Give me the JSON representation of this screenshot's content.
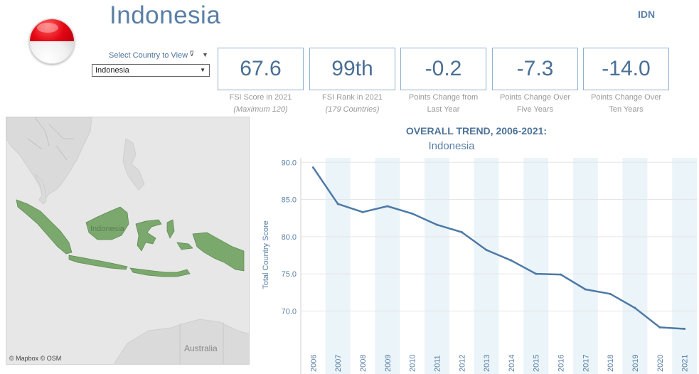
{
  "header": {
    "country_name": "Indonesia",
    "iso_code": "IDN",
    "flag_colors": {
      "top": "#e30613",
      "bottom": "#ffffff"
    }
  },
  "filter": {
    "label": "Select Country to View",
    "selected": "Indonesia"
  },
  "kpis": [
    {
      "value": "67.6",
      "caption": "FSI Score in 2021",
      "sub": "(Maximum 120)"
    },
    {
      "value": "99th",
      "caption": "FSI Rank in 2021",
      "sub": "(179 Countries)"
    },
    {
      "value": "-0.2",
      "caption": "Points Change from",
      "sub": "Last Year"
    },
    {
      "value": "-7.3",
      "caption": "Points Change Over",
      "sub": "Five Years"
    },
    {
      "value": "-14.0",
      "caption": "Points Change Over",
      "sub": "Ten Years"
    }
  ],
  "map": {
    "attribution": "© Mapbox  © OSM",
    "highlight_label": "Indonesia",
    "other_label": "Australia",
    "highlight_color": "#7aa86d"
  },
  "chart_data": {
    "type": "line",
    "title": "OVERALL TREND, 2006-2021:",
    "subtitle": "Indonesia",
    "ylabel": "Total Country Score",
    "ylim": [
      66.4,
      90.6
    ],
    "yticks": [
      "90.0",
      "85.0",
      "80.0",
      "75.0",
      "70.0"
    ],
    "ytick_values": [
      90,
      85,
      80,
      75,
      70
    ],
    "x": [
      "2006",
      "2007",
      "2008",
      "2009",
      "2010",
      "2011",
      "2012",
      "2013",
      "2014",
      "2015",
      "2016",
      "2017",
      "2018",
      "2019",
      "2020",
      "2021"
    ],
    "series": [
      {
        "values": [
          89.3,
          84.4,
          83.3,
          84.1,
          83.1,
          81.6,
          80.6,
          78.2,
          76.8,
          75.0,
          74.9,
          72.9,
          72.3,
          70.4,
          67.8,
          67.6
        ]
      }
    ],
    "line_color": "#4e79a7",
    "band_color": "#eaf4f9"
  }
}
